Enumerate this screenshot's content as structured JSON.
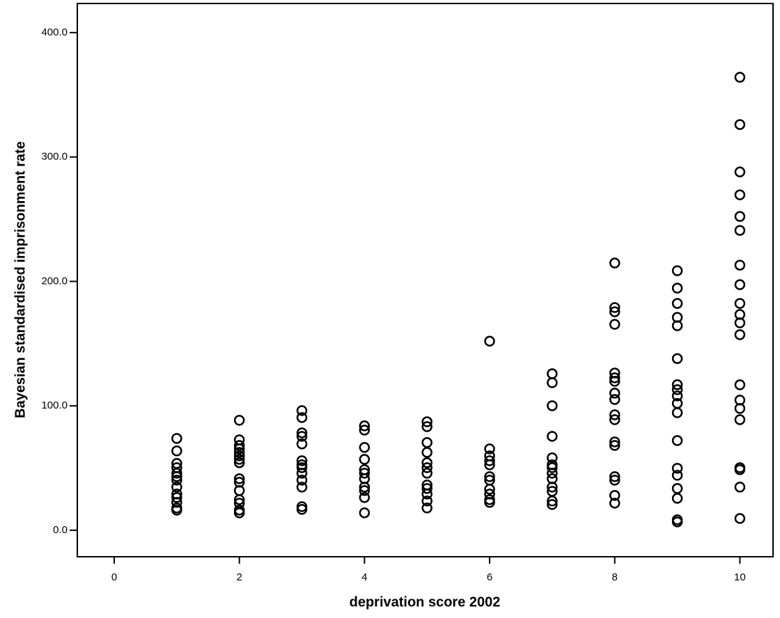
{
  "chart_data": {
    "type": "scatter",
    "x_label": "deprivation score 2002",
    "y_label": "Bayesian  standardised imprisonment rate",
    "x": [
      1,
      1,
      1,
      1,
      1,
      1,
      1,
      1,
      1,
      1,
      1,
      1,
      1,
      2,
      2,
      2,
      2,
      2,
      2,
      2,
      2,
      2,
      2,
      2,
      2,
      2,
      2,
      2,
      3,
      3,
      3,
      3,
      3,
      3,
      3,
      3,
      3,
      3,
      3,
      3,
      3,
      4,
      4,
      4,
      4,
      4,
      4,
      4,
      4,
      4,
      4,
      4,
      5,
      5,
      5,
      5,
      5,
      5,
      5,
      5,
      5,
      5,
      5,
      5,
      6,
      6,
      6,
      6,
      6,
      6,
      6,
      6,
      6,
      6,
      6,
      7,
      7,
      7,
      7,
      7,
      7,
      7,
      7,
      7,
      7,
      7,
      7,
      7,
      8,
      8,
      8,
      8,
      8,
      8,
      8,
      8,
      8,
      8,
      8,
      8,
      8,
      8,
      8,
      8,
      8,
      9,
      9,
      9,
      9,
      9,
      9,
      9,
      9,
      9,
      9,
      9,
      9,
      9,
      9,
      9,
      9,
      9,
      9,
      10,
      10,
      10,
      10,
      10,
      10,
      10,
      10,
      10,
      10,
      10,
      10,
      10,
      10,
      10,
      10,
      10,
      10,
      10,
      10
    ],
    "values": [
      73.8,
      63.8,
      53.7,
      50.3,
      45.9,
      43.1,
      40.3,
      34.7,
      29.1,
      26.3,
      22.4,
      17.9,
      16.2,
      88.4,
      72.7,
      68.2,
      65.4,
      62.6,
      59.8,
      57,
      54.3,
      41.4,
      38.6,
      31.9,
      24.6,
      21.8,
      16.2,
      14,
      96.2,
      90.6,
      78.3,
      75.5,
      69.4,
      55.9,
      52.6,
      50.3,
      45.9,
      40.3,
      34.7,
      19,
      16.8,
      83.9,
      80.5,
      66.6,
      57,
      48.7,
      45.9,
      41.4,
      34.7,
      31.9,
      26.3,
      14,
      87.2,
      83.3,
      70.5,
      62.6,
      54.3,
      50.3,
      45.9,
      36.4,
      33.6,
      29.1,
      23.5,
      17.9,
      152,
      65.4,
      59.8,
      55.9,
      52.6,
      43.1,
      40.3,
      33,
      29.1,
      24.6,
      22.4,
      125.8,
      118.6,
      100.1,
      75.5,
      58.2,
      52.6,
      50.3,
      45.9,
      41.4,
      34.7,
      31.3,
      23.5,
      20.7,
      214.8,
      179,
      175.6,
      165.5,
      126.4,
      122.5,
      119.7,
      110.2,
      105.1,
      92.8,
      88.9,
      71,
      68.2,
      43.1,
      40.3,
      28,
      21.8,
      208.6,
      194.6,
      182.3,
      171.1,
      164.4,
      138,
      117,
      113,
      108,
      102,
      94.5,
      72.1,
      49.8,
      44.2,
      33.6,
      25.7,
      8.4,
      6.7,
      364.1,
      326.1,
      288,
      269.6,
      252.2,
      241,
      213.1,
      197.4,
      182.3,
      173.4,
      166.7,
      157.2,
      116.9,
      104.6,
      97.9,
      88.9,
      50.3,
      48.7,
      34.7,
      9.5
    ],
    "xlim": [
      -0.59,
      10.53
    ],
    "ylim": [
      -21.3,
      423.4
    ],
    "xticks": [
      0,
      2,
      4,
      6,
      8,
      10
    ],
    "yticks": [
      {
        "value": 0,
        "label": "0.0"
      },
      {
        "value": 100,
        "label": "100.0"
      },
      {
        "value": 200,
        "label": "200.0"
      },
      {
        "value": 300,
        "label": "300.0"
      },
      {
        "value": 400,
        "label": "400.0"
      }
    ],
    "color": "#000000"
  }
}
